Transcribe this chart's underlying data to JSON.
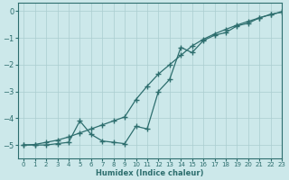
{
  "background_color": "#cce8ea",
  "grid_color": "#aacdd0",
  "line_color": "#2d6e6e",
  "xlabel": "Humidex (Indice chaleur)",
  "xlim": [
    -0.5,
    23
  ],
  "ylim": [
    -5.5,
    0.3
  ],
  "xticks": [
    0,
    1,
    2,
    3,
    4,
    5,
    6,
    7,
    8,
    9,
    10,
    11,
    12,
    13,
    14,
    15,
    16,
    17,
    18,
    19,
    20,
    21,
    22,
    23
  ],
  "yticks": [
    0,
    -1,
    -2,
    -3,
    -4,
    -5
  ],
  "line1_x": [
    0,
    1,
    2,
    3,
    4,
    5,
    6,
    7,
    8,
    9,
    10,
    11,
    12,
    13,
    14,
    15,
    16,
    17,
    18,
    19,
    20,
    21,
    22,
    23
  ],
  "line1_y": [
    -5.0,
    -5.0,
    -5.0,
    -4.95,
    -4.9,
    -4.1,
    -4.6,
    -4.85,
    -4.9,
    -4.95,
    -4.3,
    -4.4,
    -3.0,
    -2.55,
    -1.35,
    -1.55,
    -1.1,
    -0.9,
    -0.8,
    -0.55,
    -0.45,
    -0.25,
    -0.12,
    -0.03
  ],
  "line2_x": [
    0,
    1,
    2,
    3,
    4,
    5,
    6,
    7,
    8,
    9,
    10,
    11,
    12,
    13,
    14,
    15,
    16,
    17,
    18,
    19,
    20,
    21,
    22,
    23
  ],
  "line2_y": [
    -5.0,
    -4.98,
    -4.9,
    -4.82,
    -4.7,
    -4.55,
    -4.4,
    -4.25,
    -4.1,
    -3.95,
    -3.3,
    -2.8,
    -2.35,
    -2.0,
    -1.65,
    -1.3,
    -1.05,
    -0.85,
    -0.68,
    -0.52,
    -0.38,
    -0.25,
    -0.13,
    -0.03
  ],
  "marker": "+",
  "markersize": 4,
  "linewidth": 0.9
}
